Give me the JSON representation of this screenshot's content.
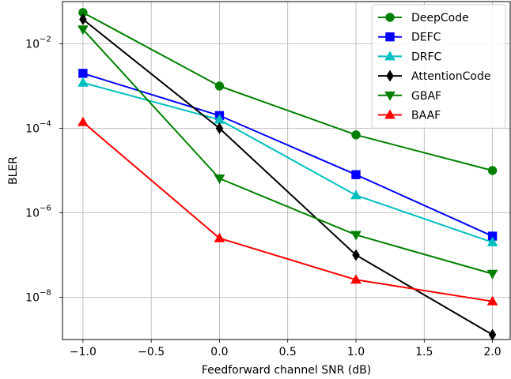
{
  "chart_data": {
    "type": "line",
    "xlabel": "Feedforward channel SNR (dB)",
    "ylabel": "BLER",
    "xscale": "linear",
    "yscale": "log",
    "xlim": [
      -1.15,
      2.13
    ],
    "ylim": [
      1e-09,
      0.1
    ],
    "xticks": [
      -1.0,
      -0.5,
      0.0,
      0.5,
      1.0,
      1.5,
      2.0
    ],
    "xtick_labels": [
      "−1.0",
      "−0.5",
      "0.0",
      "0.5",
      "1.0",
      "1.5",
      "2.0"
    ],
    "yticks": [
      {
        "value": 1e-08,
        "base": "10",
        "exp": "−8"
      },
      {
        "value": 1e-06,
        "base": "10",
        "exp": "−6"
      },
      {
        "value": 0.0001,
        "base": "10",
        "exp": "−4"
      },
      {
        "value": 0.01,
        "base": "10",
        "exp": "−2"
      }
    ],
    "grid": true,
    "legend_position": "top-right",
    "x": [
      -1.0,
      0.0,
      1.0,
      2.0
    ],
    "series": [
      {
        "name": "DeepCode",
        "values": [
          0.055,
          0.001,
          7e-05,
          1e-05
        ],
        "color": "#008000",
        "marker": "circle"
      },
      {
        "name": "DEFC",
        "values": [
          0.002,
          0.0002,
          8e-06,
          2.8e-07
        ],
        "color": "#0000ff",
        "marker": "square"
      },
      {
        "name": "DRFC",
        "values": [
          0.0012,
          0.00016,
          2.6e-06,
          2e-07
        ],
        "color": "#00bfbf",
        "marker": "triangle-up"
      },
      {
        "name": "AttentionCode",
        "values": [
          0.038,
          0.0001,
          1e-07,
          1.3e-09
        ],
        "color": "#000000",
        "marker": "diamond"
      },
      {
        "name": "GBAF",
        "values": [
          0.022,
          6.5e-06,
          3e-07,
          3.6e-08
        ],
        "color": "#008000",
        "marker": "triangle-down"
      },
      {
        "name": "BAAF",
        "values": [
          0.00014,
          2.5e-07,
          2.6e-08,
          8e-09
        ],
        "color": "#ff0000",
        "marker": "triangle-up"
      }
    ]
  }
}
